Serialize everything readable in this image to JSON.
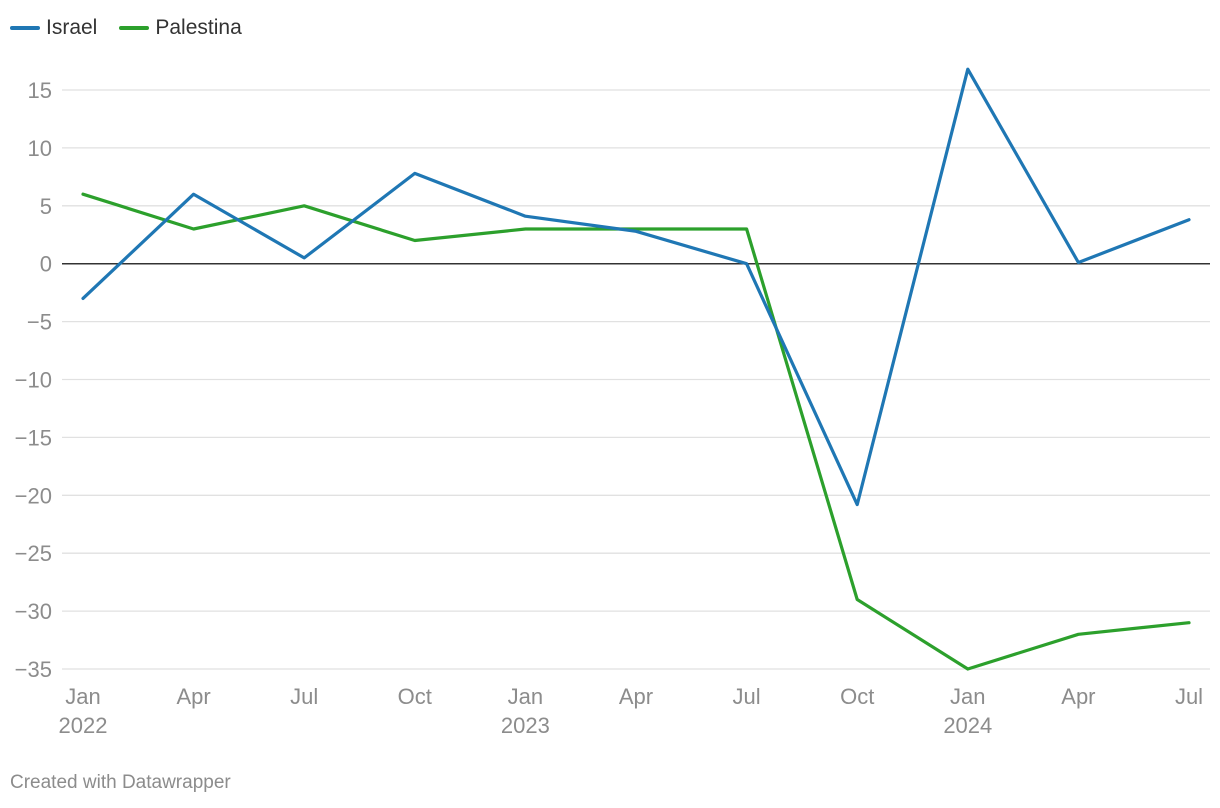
{
  "chart_data": {
    "type": "line",
    "x": [
      "2022-01",
      "2022-04",
      "2022-07",
      "2022-10",
      "2023-01",
      "2023-04",
      "2023-07",
      "2023-10",
      "2024-01",
      "2024-04",
      "2024-07"
    ],
    "x_tick_labels": [
      {
        "label": "Jan",
        "year": "2022"
      },
      {
        "label": "Apr",
        "year": ""
      },
      {
        "label": "Jul",
        "year": ""
      },
      {
        "label": "Oct",
        "year": ""
      },
      {
        "label": "Jan",
        "year": "2023"
      },
      {
        "label": "Apr",
        "year": ""
      },
      {
        "label": "Jul",
        "year": ""
      },
      {
        "label": "Oct",
        "year": ""
      },
      {
        "label": "Jan",
        "year": "2024"
      },
      {
        "label": "Apr",
        "year": ""
      },
      {
        "label": "Jul",
        "year": ""
      }
    ],
    "series": [
      {
        "name": "Israel",
        "color": "#1f77b4",
        "values": [
          -3,
          6,
          0.5,
          7.8,
          4.1,
          2.8,
          0,
          -20.8,
          16.8,
          0.1,
          3.8
        ]
      },
      {
        "name": "Palestina",
        "color": "#2ca02c",
        "values": [
          6,
          3,
          5,
          2,
          3,
          3,
          3,
          -29,
          -35,
          -32,
          -31
        ]
      }
    ],
    "ylim": [
      -35,
      15
    ],
    "y_ticks": [
      15,
      10,
      5,
      0,
      -5,
      -10,
      -15,
      -20,
      -25,
      -30,
      -35
    ],
    "y_tick_labels": [
      "15",
      "10",
      "5",
      "0",
      "−5",
      "−10",
      "−15",
      "−20",
      "−25",
      "−30",
      "−35"
    ],
    "grid": true,
    "legend_position": "top-left",
    "xlabel": "",
    "ylabel": ""
  },
  "footer": "Created with Datawrapper"
}
